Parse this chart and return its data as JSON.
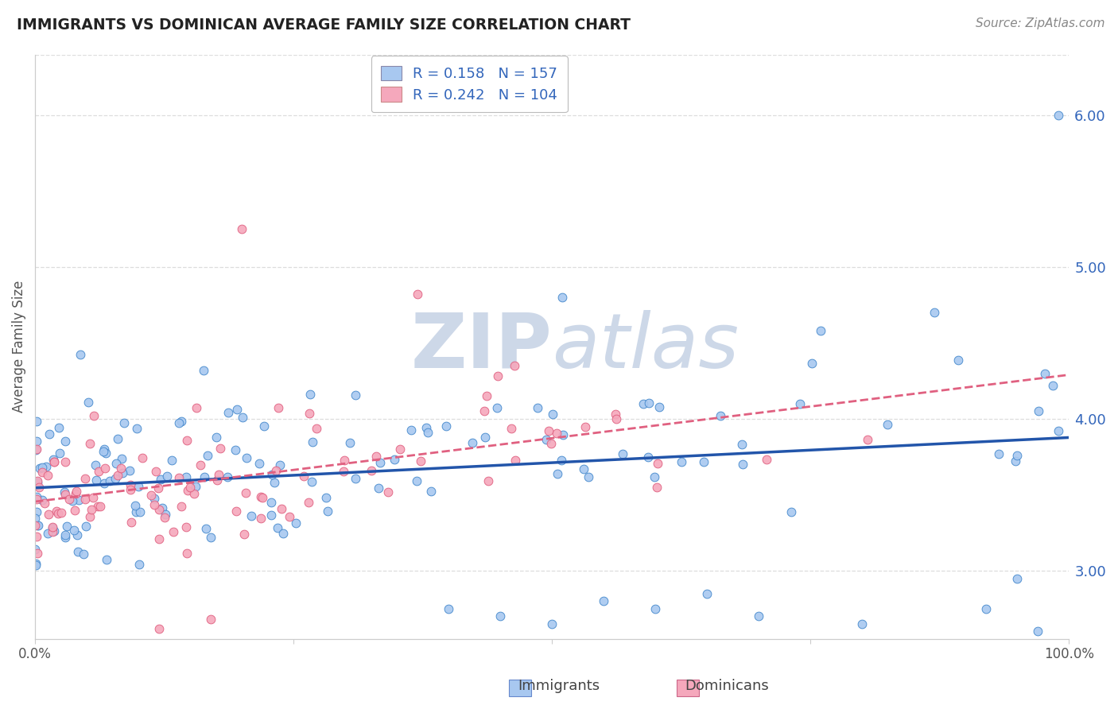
{
  "title": "IMMIGRANTS VS DOMINICAN AVERAGE FAMILY SIZE CORRELATION CHART",
  "source_text": "Source: ZipAtlas.com",
  "ylabel": "Average Family Size",
  "xlim": [
    0.0,
    1.0
  ],
  "ylim": [
    2.55,
    6.4
  ],
  "xticks": [
    0.0,
    0.25,
    0.5,
    0.75,
    1.0
  ],
  "xticklabels": [
    "0.0%",
    "",
    "",
    "",
    "100.0%"
  ],
  "yticks_right": [
    3.0,
    4.0,
    5.0,
    6.0
  ],
  "immigrants_R": 0.158,
  "immigrants_N": 157,
  "dominicans_R": 0.242,
  "dominicans_N": 104,
  "immigrants_color": "#a8c8f0",
  "dominicans_color": "#f5a8bc",
  "immigrants_edge_color": "#4488cc",
  "dominicans_edge_color": "#e06080",
  "immigrants_line_color": "#2255aa",
  "dominicans_line_color": "#e06080",
  "watermark_color": "#cdd8e8",
  "background_color": "#ffffff",
  "legend_text_color": "#3366bb",
  "legend_box_immigrants": "#a8c8f0",
  "legend_box_dominicans": "#f5a8bc",
  "grid_color": "#dddddd",
  "spine_color": "#cccccc",
  "tick_label_color": "#555555",
  "right_tick_color": "#3366bb"
}
